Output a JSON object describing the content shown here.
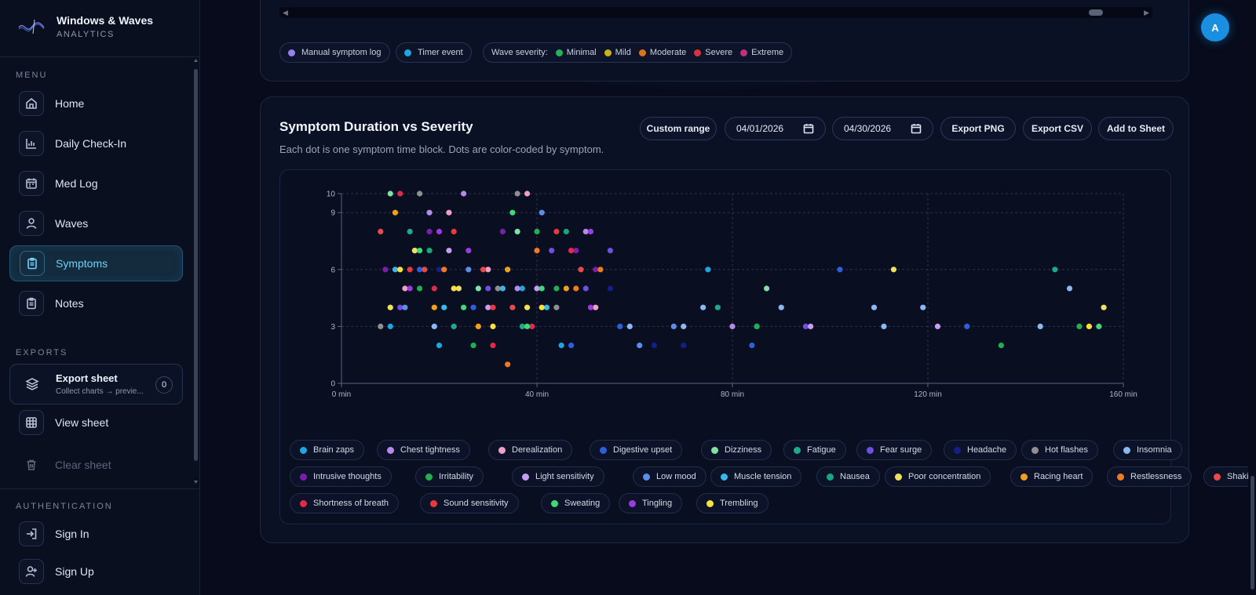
{
  "app": {
    "title": "Windows & Waves",
    "subtitle": "ANALYTICS",
    "avatar_initial": "A"
  },
  "sidebar": {
    "menu_label": "MENU",
    "menu_items": [
      {
        "label": "Home",
        "icon": "home-icon"
      },
      {
        "label": "Daily Check-In",
        "icon": "bar-chart-icon"
      },
      {
        "label": "Med Log",
        "icon": "calendar-icon"
      },
      {
        "label": "Waves",
        "icon": "user-icon"
      },
      {
        "label": "Symptoms",
        "icon": "clipboard-icon",
        "active": true
      },
      {
        "label": "Notes",
        "icon": "clipboard-icon"
      }
    ],
    "exports_label": "EXPORTS",
    "export_sheet": {
      "title": "Export sheet",
      "subtitle": "Collect charts → previe...",
      "count": "0"
    },
    "view_sheet": "View sheet",
    "clear_sheet": "Clear sheet",
    "auth_label": "AUTHENTICATION",
    "sign_in": "Sign In",
    "sign_up": "Sign Up"
  },
  "top_legend": {
    "manual": "Manual symptom log",
    "timer": "Timer event",
    "wave_label": "Wave severity:",
    "severities": [
      {
        "label": "Minimal",
        "color": "#22b35c"
      },
      {
        "label": "Mild",
        "color": "#c7b11e"
      },
      {
        "label": "Moderate",
        "color": "#d9731c"
      },
      {
        "label": "Severe",
        "color": "#d8323f"
      },
      {
        "label": "Extreme",
        "color": "#c2307d"
      }
    ]
  },
  "chart_card": {
    "title": "Symptom Duration vs Severity",
    "subtitle": "Each dot is one symptom time block. Dots are color-coded by symptom.",
    "custom_range": "Custom range",
    "date_from": "04/01/2026",
    "date_to": "04/30/2026",
    "export_png": "Export PNG",
    "export_csv": "Export CSV",
    "add_to_sheet": "Add to Sheet"
  },
  "chart_data": {
    "type": "scatter",
    "title": "Symptom Duration vs Severity",
    "xlabel": "",
    "ylabel": "",
    "xlim": [
      0,
      160
    ],
    "ylim": [
      0,
      10
    ],
    "x_ticks": [
      "0 min",
      "40 min",
      "80 min",
      "120 min",
      "160 min"
    ],
    "y_ticks": [
      "0",
      "3",
      "6",
      "9",
      "10"
    ],
    "grid": true,
    "legend_position": "bottom",
    "series": [
      {
        "name": "Brain zaps",
        "color": "#1ea6e0",
        "points": [
          [
            10,
            3
          ],
          [
            20,
            2
          ],
          [
            37,
            5
          ],
          [
            45,
            2
          ],
          [
            75,
            6
          ]
        ]
      },
      {
        "name": "Chest tightness",
        "color": "#b48be8",
        "points": [
          [
            18,
            9
          ],
          [
            25,
            10
          ],
          [
            36,
            5
          ],
          [
            50,
            8
          ],
          [
            80,
            3
          ]
        ]
      },
      {
        "name": "Derealization",
        "color": "#f0a0c8",
        "points": [
          [
            13,
            5
          ],
          [
            22,
            9
          ],
          [
            30,
            6
          ],
          [
            38,
            10
          ],
          [
            52,
            4
          ]
        ]
      },
      {
        "name": "Digestive upset",
        "color": "#2d5fd8",
        "points": [
          [
            16,
            6
          ],
          [
            27,
            4
          ],
          [
            47,
            2
          ],
          [
            57,
            3
          ],
          [
            84,
            2
          ],
          [
            102,
            6
          ],
          [
            128,
            3
          ]
        ]
      },
      {
        "name": "Dizziness",
        "color": "#7fe0a8",
        "points": [
          [
            10,
            10
          ],
          [
            15,
            7
          ],
          [
            28,
            5
          ],
          [
            36,
            8
          ],
          [
            87,
            5
          ]
        ]
      },
      {
        "name": "Fatigue",
        "color": "#1fa88a",
        "points": [
          [
            14,
            8
          ],
          [
            23,
            3
          ],
          [
            37,
            3
          ],
          [
            77,
            4
          ],
          [
            85,
            3
          ],
          [
            146,
            6
          ]
        ]
      },
      {
        "name": "Fear surge",
        "color": "#6e4fe0",
        "points": [
          [
            12,
            4
          ],
          [
            30,
            5
          ],
          [
            43,
            7
          ],
          [
            50,
            5
          ],
          [
            55,
            7
          ],
          [
            95,
            3
          ]
        ]
      },
      {
        "name": "Headache",
        "color": "#141f8a",
        "points": [
          [
            20,
            6
          ],
          [
            64,
            2
          ],
          [
            70,
            2
          ],
          [
            55,
            5
          ]
        ]
      },
      {
        "name": "Hot flashes",
        "color": "#8f8f8f",
        "points": [
          [
            8,
            3
          ],
          [
            16,
            10
          ],
          [
            32,
            5
          ],
          [
            36,
            10
          ],
          [
            44,
            4
          ]
        ]
      },
      {
        "name": "Insomnia",
        "color": "#8ab8f0",
        "points": [
          [
            19,
            3
          ],
          [
            59,
            3
          ],
          [
            70,
            3
          ],
          [
            74,
            4
          ],
          [
            90,
            4
          ],
          [
            109,
            4
          ],
          [
            111,
            3
          ],
          [
            119,
            4
          ],
          [
            143,
            3
          ],
          [
            149,
            5
          ]
        ]
      },
      {
        "name": "Intrusive thoughts",
        "color": "#7a1fa8",
        "points": [
          [
            9,
            6
          ],
          [
            18,
            8
          ],
          [
            33,
            8
          ],
          [
            48,
            7
          ],
          [
            52,
            6
          ]
        ]
      },
      {
        "name": "Irritability",
        "color": "#20b050",
        "points": [
          [
            16,
            5
          ],
          [
            27,
            2
          ],
          [
            40,
            8
          ],
          [
            44,
            5
          ],
          [
            85,
            3
          ],
          [
            135,
            2
          ],
          [
            151,
            3
          ]
        ]
      },
      {
        "name": "Light sensitivity",
        "color": "#c79cf2",
        "points": [
          [
            22,
            7
          ],
          [
            30,
            4
          ],
          [
            40,
            5
          ],
          [
            96,
            3
          ],
          [
            122,
            3
          ]
        ]
      },
      {
        "name": "Low mood",
        "color": "#5b8ee8",
        "points": [
          [
            13,
            4
          ],
          [
            26,
            6
          ],
          [
            41,
            9
          ],
          [
            61,
            2
          ],
          [
            68,
            3
          ]
        ]
      },
      {
        "name": "Muscle tension",
        "color": "#3bb6e8",
        "points": [
          [
            11,
            6
          ],
          [
            21,
            4
          ],
          [
            33,
            5
          ],
          [
            42,
            4
          ]
        ]
      },
      {
        "name": "Nausea",
        "color": "#18a680",
        "points": [
          [
            18,
            7
          ],
          [
            34,
            6
          ],
          [
            46,
            8
          ]
        ]
      },
      {
        "name": "Poor concentration",
        "color": "#f0e060",
        "points": [
          [
            10,
            4
          ],
          [
            15,
            7
          ],
          [
            24,
            5
          ],
          [
            38,
            4
          ],
          [
            113,
            6
          ],
          [
            156,
            4
          ]
        ]
      },
      {
        "name": "Racing heart",
        "color": "#f0a020",
        "points": [
          [
            11,
            9
          ],
          [
            19,
            4
          ],
          [
            28,
            3
          ],
          [
            34,
            6
          ],
          [
            46,
            5
          ]
        ]
      },
      {
        "name": "Restlessness",
        "color": "#f07a20",
        "points": [
          [
            21,
            6
          ],
          [
            34,
            1
          ],
          [
            40,
            7
          ],
          [
            48,
            5
          ],
          [
            53,
            6
          ]
        ]
      },
      {
        "name": "Shaking",
        "color": "#e84a4a",
        "points": [
          [
            8,
            8
          ],
          [
            17,
            6
          ],
          [
            29,
            6
          ],
          [
            35,
            4
          ],
          [
            49,
            6
          ]
        ]
      },
      {
        "name": "Shortness of breath",
        "color": "#e02a4a",
        "points": [
          [
            12,
            10
          ],
          [
            19,
            5
          ],
          [
            31,
            2
          ],
          [
            39,
            3
          ],
          [
            47,
            7
          ]
        ]
      },
      {
        "name": "Sound sensitivity",
        "color": "#e83a3a",
        "points": [
          [
            14,
            6
          ],
          [
            23,
            8
          ],
          [
            31,
            4
          ],
          [
            44,
            8
          ]
        ]
      },
      {
        "name": "Sweating",
        "color": "#40d878",
        "points": [
          [
            16,
            7
          ],
          [
            25,
            4
          ],
          [
            35,
            9
          ],
          [
            38,
            3
          ],
          [
            41,
            5
          ],
          [
            155,
            3
          ]
        ]
      },
      {
        "name": "Tingling",
        "color": "#9a3ae0",
        "points": [
          [
            14,
            5
          ],
          [
            20,
            8
          ],
          [
            26,
            7
          ],
          [
            51,
            8
          ],
          [
            51,
            4
          ]
        ]
      },
      {
        "name": "Trembling",
        "color": "#f8e040",
        "points": [
          [
            12,
            6
          ],
          [
            23,
            5
          ],
          [
            31,
            3
          ],
          [
            41,
            4
          ],
          [
            153,
            3
          ]
        ]
      }
    ]
  }
}
